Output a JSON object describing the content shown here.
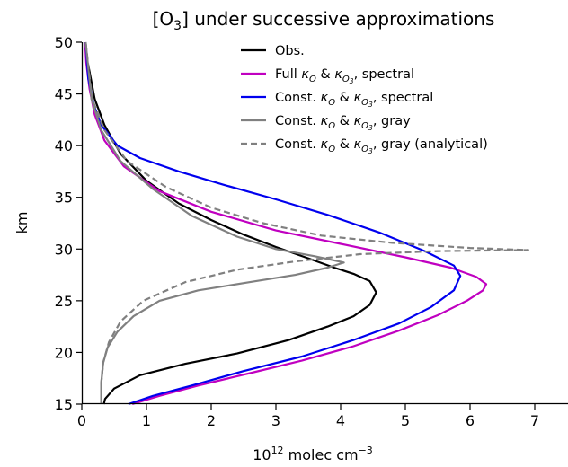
{
  "chart_data": {
    "type": "line",
    "title_parts": [
      "[O",
      "3",
      "] under successive approximations"
    ],
    "xlabel_parts": [
      "10",
      "12",
      " molec cm",
      "−3"
    ],
    "ylabel": "km",
    "xlim": [
      0,
      7.5
    ],
    "ylim": [
      15,
      50
    ],
    "xticks": [
      0,
      1,
      2,
      3,
      4,
      5,
      6,
      7
    ],
    "yticks": [
      15,
      20,
      25,
      30,
      35,
      40,
      45,
      50
    ],
    "grid": false,
    "legend_position": "top-right",
    "series": [
      {
        "name": "Obs.",
        "legend": {
          "pre": "Obs."
        },
        "color": "#000000",
        "dash": "solid",
        "points": [
          [
            0.34,
            15
          ],
          [
            0.36,
            15.5
          ],
          [
            0.5,
            16.5
          ],
          [
            0.9,
            17.8
          ],
          [
            1.6,
            18.9
          ],
          [
            2.4,
            19.9
          ],
          [
            3.2,
            21.2
          ],
          [
            3.8,
            22.5
          ],
          [
            4.2,
            23.5
          ],
          [
            4.45,
            24.6
          ],
          [
            4.55,
            25.8
          ],
          [
            4.45,
            26.9
          ],
          [
            4.2,
            27.6
          ],
          [
            3.9,
            28.2
          ],
          [
            3.5,
            29.1
          ],
          [
            3.0,
            30.2
          ],
          [
            2.5,
            31.4
          ],
          [
            2.0,
            32.8
          ],
          [
            1.5,
            34.4
          ],
          [
            1.0,
            36.6
          ],
          [
            0.6,
            39.2
          ],
          [
            0.35,
            42.0
          ],
          [
            0.2,
            44.5
          ],
          [
            0.1,
            47.8
          ]
        ]
      },
      {
        "name": "Full κO & κO3, spectral",
        "legend": {
          "pre": "Full ",
          "k1": "κ",
          "s1": "O",
          "mid": " & ",
          "k2": "κ",
          "s2": "O",
          "s3": "3",
          "post": ", spectral"
        },
        "color": "#c000c0",
        "dash": "solid",
        "points": [
          [
            0.78,
            15
          ],
          [
            1.2,
            15.8
          ],
          [
            1.8,
            16.8
          ],
          [
            2.6,
            18.0
          ],
          [
            3.4,
            19.2
          ],
          [
            4.2,
            20.6
          ],
          [
            4.9,
            22.1
          ],
          [
            5.5,
            23.6
          ],
          [
            5.95,
            25.0
          ],
          [
            6.2,
            26.0
          ],
          [
            6.25,
            26.6
          ],
          [
            6.1,
            27.3
          ],
          [
            5.7,
            28.2
          ],
          [
            5.0,
            29.2
          ],
          [
            4.0,
            30.5
          ],
          [
            3.0,
            31.8
          ],
          [
            2.0,
            33.6
          ],
          [
            1.2,
            35.6
          ],
          [
            0.65,
            38.0
          ],
          [
            0.35,
            40.5
          ],
          [
            0.2,
            43.0
          ],
          [
            0.12,
            45.5
          ],
          [
            0.07,
            48.0
          ],
          [
            0.05,
            50
          ]
        ]
      },
      {
        "name": "Const. κO & κO3, spectral",
        "legend": {
          "pre": "Const. ",
          "k1": "κ",
          "s1": "O",
          "mid": " & ",
          "k2": "κ",
          "s2": "O",
          "s3": "3",
          "post": ", spectral"
        },
        "color": "#0000ee",
        "dash": "solid",
        "points": [
          [
            0.72,
            15
          ],
          [
            1.1,
            15.8
          ],
          [
            1.7,
            16.8
          ],
          [
            2.5,
            18.2
          ],
          [
            3.4,
            19.6
          ],
          [
            4.2,
            21.2
          ],
          [
            4.9,
            22.8
          ],
          [
            5.4,
            24.4
          ],
          [
            5.75,
            26.0
          ],
          [
            5.85,
            27.4
          ],
          [
            5.75,
            28.4
          ],
          [
            5.3,
            29.8
          ],
          [
            4.6,
            31.6
          ],
          [
            3.8,
            33.3
          ],
          [
            3.0,
            34.8
          ],
          [
            2.2,
            36.2
          ],
          [
            1.5,
            37.5
          ],
          [
            0.9,
            38.8
          ],
          [
            0.55,
            40.0
          ],
          [
            0.3,
            42.0
          ],
          [
            0.18,
            44.0
          ],
          [
            0.1,
            46.5
          ],
          [
            0.06,
            50
          ]
        ]
      },
      {
        "name": "Const. κO & κO3, gray",
        "legend": {
          "pre": "Const. ",
          "k1": "κ",
          "s1": "O",
          "mid": " & ",
          "k2": "κ",
          "s2": "O",
          "s3": "3",
          "post": ", gray"
        },
        "color": "#808080",
        "dash": "solid",
        "points": [
          [
            0.3,
            15
          ],
          [
            0.3,
            17
          ],
          [
            0.33,
            19
          ],
          [
            0.4,
            20.5
          ],
          [
            0.55,
            22.0
          ],
          [
            0.8,
            23.5
          ],
          [
            1.2,
            25.0
          ],
          [
            1.8,
            26.0
          ],
          [
            2.6,
            26.8
          ],
          [
            3.3,
            27.5
          ],
          [
            3.8,
            28.2
          ],
          [
            4.05,
            28.7
          ],
          [
            3.6,
            29.3
          ],
          [
            3.0,
            30.0
          ],
          [
            2.4,
            31.2
          ],
          [
            1.7,
            33.2
          ],
          [
            1.1,
            35.8
          ],
          [
            0.6,
            38.5
          ],
          [
            0.3,
            41.5
          ],
          [
            0.15,
            44.5
          ],
          [
            0.06,
            50
          ]
        ]
      },
      {
        "name": "Const. κO & κO3, gray (analytical)",
        "legend": {
          "pre": "Const. ",
          "k1": "κ",
          "s1": "O",
          "mid": " & ",
          "k2": "κ",
          "s2": "O",
          "s3": "3",
          "post": ", gray (analytical)"
        },
        "color": "#808080",
        "dash": "dashed",
        "points": [
          [
            0.3,
            15
          ],
          [
            0.3,
            17
          ],
          [
            0.33,
            19
          ],
          [
            0.42,
            21.0
          ],
          [
            0.6,
            23.0
          ],
          [
            0.95,
            25.0
          ],
          [
            1.6,
            26.8
          ],
          [
            2.4,
            28.0
          ],
          [
            3.3,
            28.8
          ],
          [
            4.3,
            29.5
          ],
          [
            5.5,
            29.8
          ],
          [
            6.9,
            29.9
          ],
          [
            6.0,
            30.1
          ],
          [
            4.8,
            30.6
          ],
          [
            3.7,
            31.3
          ],
          [
            2.8,
            32.5
          ],
          [
            2.0,
            34.0
          ],
          [
            1.3,
            36.0
          ],
          [
            0.7,
            38.5
          ],
          [
            0.35,
            41.5
          ],
          [
            0.16,
            44.5
          ],
          [
            0.06,
            50
          ]
        ]
      }
    ]
  }
}
